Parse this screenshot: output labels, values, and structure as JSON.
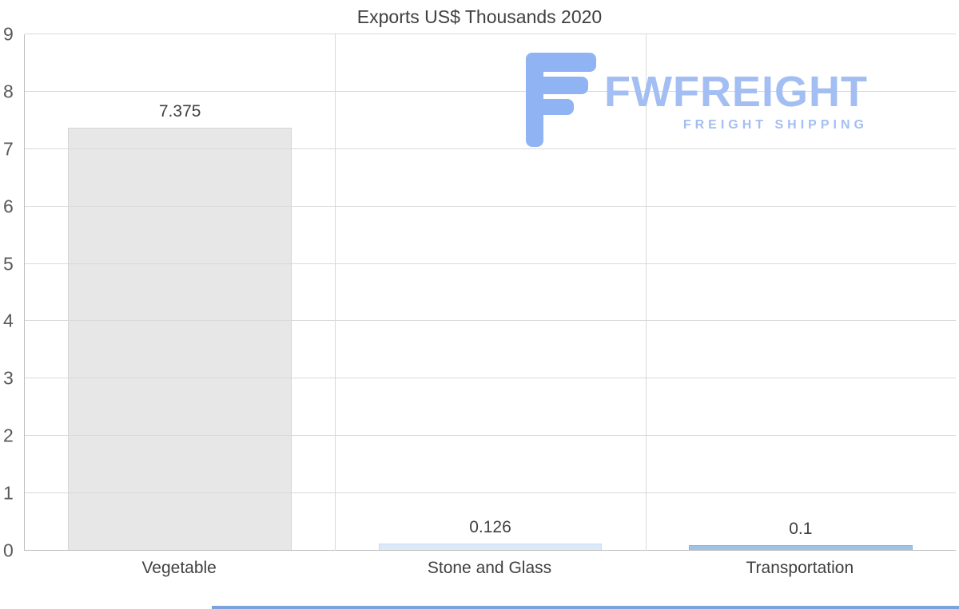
{
  "title": "Exports US$ Thousands 2020",
  "chart_data": {
    "type": "bar",
    "title": "Exports US$ Thousands 2020",
    "categories": [
      "Vegetable",
      "Stone and Glass",
      "Transportation"
    ],
    "values": [
      7.375,
      0.126,
      0.1
    ],
    "value_labels": [
      "7.375",
      "0.126",
      "0.1"
    ],
    "xlabel": "",
    "ylabel": "",
    "ylim": [
      0,
      9
    ],
    "yticks": [
      0,
      1,
      2,
      3,
      4,
      5,
      6,
      7,
      8,
      9
    ],
    "grid": true,
    "legend": false,
    "bar_colors": [
      "#e7e7e7",
      "#dce9f8",
      "#9fc3e8"
    ],
    "bar_border_colors": [
      "#d4d4d4",
      "#c8dcf3",
      "#8ab4e0"
    ]
  },
  "logo": {
    "brand": "FWFREIGHT",
    "tagline": "FREIGHT SHIPPING",
    "glyph_color": "#8fb3f3",
    "text_color": "#a3bef2"
  },
  "colors": {
    "gridline": "#d9d9d9",
    "axis": "#bfbfbf",
    "tick_text": "#595959",
    "title_text": "#3f3f3f",
    "bottom_accent": "#7aa3da"
  }
}
